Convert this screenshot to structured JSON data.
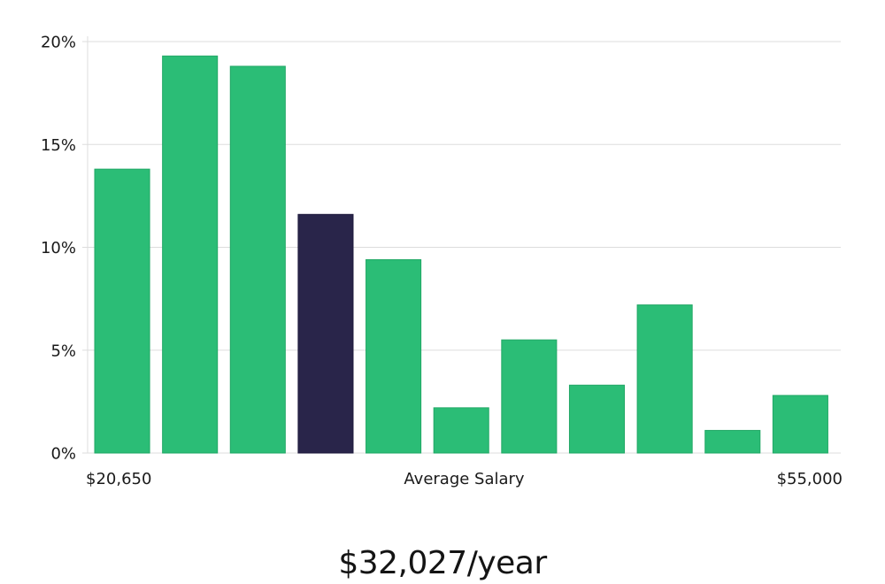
{
  "chart_data": {
    "type": "bar",
    "title": "",
    "xlabel": "Average Salary",
    "ylabel": "",
    "x_range_labels": {
      "min": "$20,650",
      "max": "$55,000"
    },
    "ylim": [
      0,
      20
    ],
    "y_ticks": [
      0,
      5,
      10,
      15,
      20
    ],
    "y_tick_labels": [
      "0%",
      "5%",
      "10%",
      "15%",
      "20%"
    ],
    "grid": true,
    "values": [
      13.8,
      19.3,
      18.8,
      11.6,
      9.4,
      2.2,
      5.5,
      3.3,
      7.2,
      1.1,
      2.8
    ],
    "highlight_index": 3,
    "colors": {
      "bar": "#2bbd76",
      "highlight": "#29254a",
      "grid": "#dddddd"
    }
  },
  "summary": {
    "salary": "$32,027/year"
  }
}
